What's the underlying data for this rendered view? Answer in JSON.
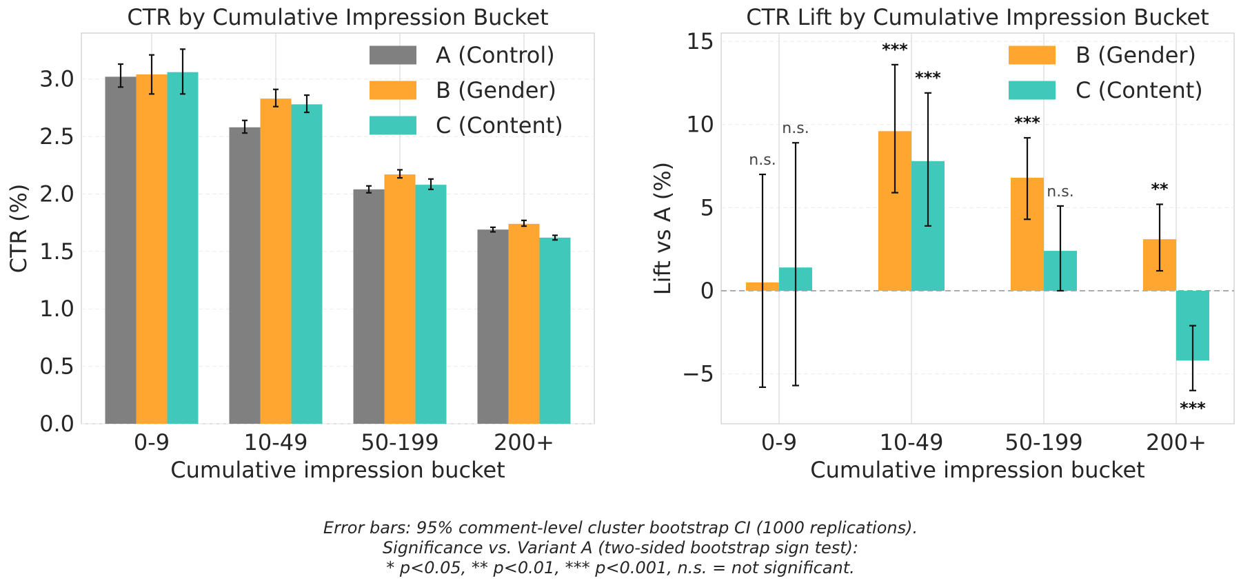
{
  "caption": {
    "line1": "Error bars: 95% comment-level cluster bootstrap CI (1000 replications).",
    "line2": "Significance vs. Variant A (two-sided bootstrap sign test):",
    "line3": "* p<0.05, ** p<0.01, *** p<0.001, n.s. = not significant."
  },
  "chart_data": [
    {
      "type": "bar",
      "title": "CTR by Cumulative Impression Bucket",
      "xlabel": "Cumulative impression bucket",
      "ylabel": "CTR (%)",
      "ylim": [
        0,
        3.4
      ],
      "yticks": [
        "0.0",
        "0.5",
        "1.0",
        "1.5",
        "2.0",
        "2.5",
        "3.0"
      ],
      "grid": true,
      "legend_position": "top-right",
      "categories": [
        "0-9",
        "10-49",
        "50-199",
        "200+"
      ],
      "series": [
        {
          "name": "A (Control)",
          "color": "#808080",
          "values": [
            3.02,
            2.58,
            2.04,
            1.69
          ],
          "err_low": [
            2.93,
            2.53,
            2.01,
            1.67
          ],
          "err_high": [
            3.13,
            2.64,
            2.07,
            1.71
          ]
        },
        {
          "name": "B (Gender)",
          "color": "#FFA630",
          "values": [
            3.04,
            2.83,
            2.17,
            1.74
          ],
          "err_low": [
            2.87,
            2.76,
            2.14,
            1.72
          ],
          "err_high": [
            3.21,
            2.91,
            2.21,
            1.77
          ]
        },
        {
          "name": "C (Content)",
          "color": "#40C8BA",
          "values": [
            3.06,
            2.78,
            2.08,
            1.62
          ],
          "err_low": [
            2.87,
            2.71,
            2.04,
            1.6
          ],
          "err_high": [
            3.26,
            2.86,
            2.13,
            1.64
          ]
        }
      ]
    },
    {
      "type": "bar",
      "title": "CTR Lift by Cumulative Impression Bucket",
      "xlabel": "Cumulative impression bucket",
      "ylabel": "Lift vs A (%)",
      "ylim": [
        -8,
        15.5
      ],
      "yticks": [
        "−5",
        "0",
        "5",
        "10",
        "15"
      ],
      "grid": true,
      "legend_position": "top-right",
      "reference_line": 0,
      "categories": [
        "0-9",
        "10-49",
        "50-199",
        "200+"
      ],
      "series": [
        {
          "name": "B (Gender)",
          "color": "#FFA630",
          "values": [
            0.5,
            9.6,
            6.8,
            3.1
          ],
          "err_low": [
            -5.8,
            5.9,
            4.3,
            1.2
          ],
          "err_high": [
            7.0,
            13.6,
            9.2,
            5.2
          ],
          "significance": [
            "n.s.",
            "***",
            "***",
            "**"
          ]
        },
        {
          "name": "C (Content)",
          "color": "#40C8BA",
          "values": [
            1.4,
            7.8,
            2.4,
            -4.2
          ],
          "err_low": [
            -5.7,
            3.9,
            0.0,
            -6.0
          ],
          "err_high": [
            8.9,
            11.9,
            5.1,
            -2.1
          ],
          "significance": [
            "n.s.",
            "***",
            "n.s.",
            "***"
          ]
        }
      ]
    }
  ]
}
